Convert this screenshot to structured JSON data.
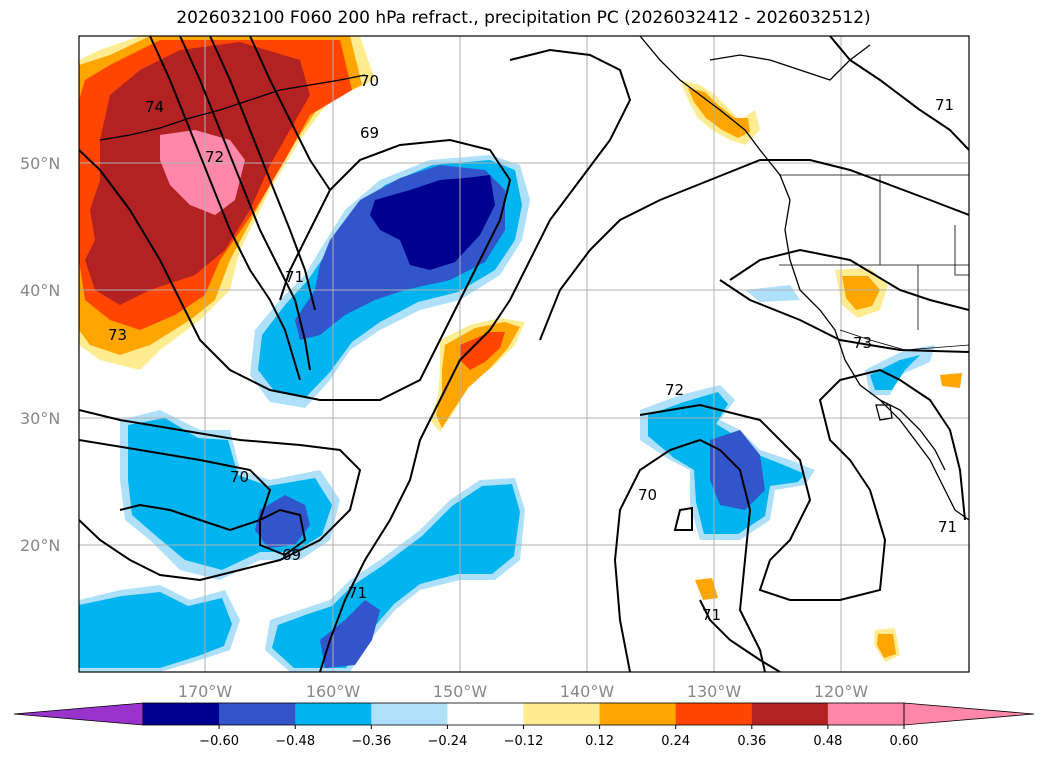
{
  "title": "2026032100 F060 200 hPa refract., precipitation PC (2026032412 - 2026032512)",
  "lat_labels": [
    "50°N",
    "40°N",
    "30°N",
    "20°N"
  ],
  "lon_labels": [
    "170°W",
    "160°W",
    "150°W",
    "140°W",
    "130°W",
    "120°W"
  ],
  "contour_labels": [
    "70",
    "69",
    "72",
    "74",
    "71",
    "73",
    "72",
    "70",
    "69",
    "71",
    "70",
    "71",
    "71",
    "71"
  ],
  "colorbar": {
    "ticks": [
      "−0.60",
      "−0.48",
      "−0.36",
      "−0.24",
      "−0.12",
      "0.12",
      "0.24",
      "0.36",
      "0.48",
      "0.60"
    ],
    "colors": {
      "under": "#9933cc",
      "bins": [
        "#000090",
        "#3355cc",
        "#00b4f0",
        "#aee0fa",
        "#ffffff",
        "#ffeb90",
        "#ffa500",
        "#ff4500",
        "#b22222",
        "#ff88aa"
      ],
      "over": "#ff88aa"
    }
  }
}
